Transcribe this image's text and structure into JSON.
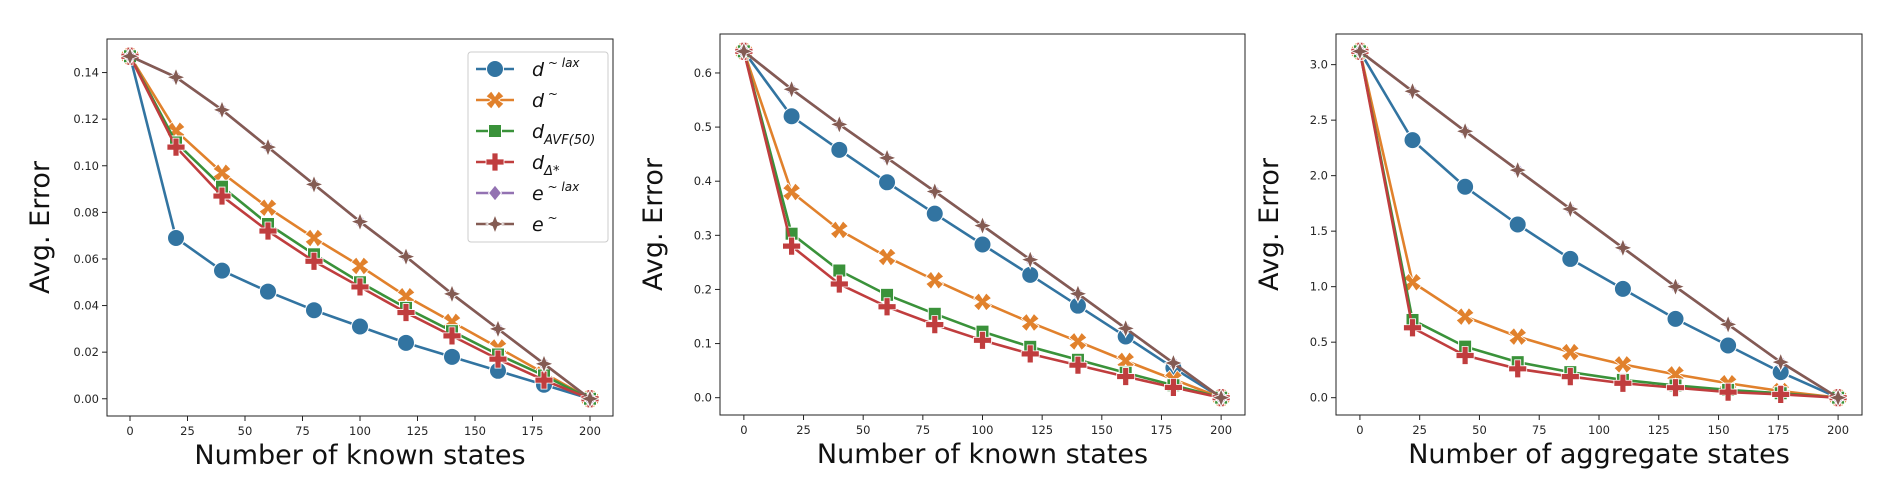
{
  "chart_data": [
    {
      "type": "line",
      "xlabel": "Number of known states",
      "ylabel": "Avg. Error",
      "xlim": [
        -10,
        210
      ],
      "ylim": [
        -0.0074,
        0.1544
      ],
      "xticks": [
        0,
        25,
        50,
        75,
        100,
        125,
        150,
        175,
        200
      ],
      "yticks": [
        0.0,
        0.02,
        0.04,
        0.06,
        0.08,
        0.1,
        0.12,
        0.14
      ],
      "ytick_decimals": 2,
      "legend": "top-right",
      "x": [
        0,
        20,
        40,
        60,
        80,
        100,
        120,
        140,
        160,
        180,
        200
      ],
      "series": [
        {
          "name": "d~lax",
          "label_main": "d",
          "label_sup": "~ lax",
          "label_sub": "",
          "color": "#3274a1",
          "marker": "circle",
          "values": [
            0.147,
            0.069,
            0.055,
            0.046,
            0.038,
            0.031,
            0.024,
            0.018,
            0.012,
            0.006,
            0.0
          ]
        },
        {
          "name": "d~",
          "label_main": "d",
          "label_sup": "~",
          "label_sub": "",
          "color": "#e1812c",
          "marker": "x",
          "values": [
            0.147,
            0.115,
            0.097,
            0.082,
            0.069,
            0.057,
            0.044,
            0.033,
            0.022,
            0.011,
            0.0
          ]
        },
        {
          "name": "d_AVF(50)",
          "label_main": "d",
          "label_sup": "",
          "label_sub": "AVF(50)",
          "color": "#3a923a",
          "marker": "square",
          "values": [
            0.147,
            0.11,
            0.091,
            0.075,
            0.062,
            0.05,
            0.039,
            0.029,
            0.019,
            0.01,
            0.0
          ]
        },
        {
          "name": "d_Δ*",
          "label_main": "d",
          "label_sup": "",
          "label_sub": "Δ*",
          "color": "#c03d3e",
          "marker": "plus",
          "values": [
            0.147,
            0.108,
            0.087,
            0.072,
            0.059,
            0.048,
            0.037,
            0.027,
            0.017,
            0.008,
            0.0
          ]
        },
        {
          "name": "e~lax",
          "label_main": "e",
          "label_sup": "~ lax",
          "label_sub": "",
          "color": "#9372b2",
          "marker": "diamond",
          "values": [
            0.147,
            0.138,
            0.124,
            0.108,
            0.092,
            0.076,
            0.061,
            0.045,
            0.03,
            0.015,
            0.0
          ]
        },
        {
          "name": "e~",
          "label_main": "e",
          "label_sup": "~",
          "label_sub": "",
          "color": "#845b53",
          "marker": "star",
          "values": [
            0.147,
            0.138,
            0.124,
            0.108,
            0.092,
            0.076,
            0.061,
            0.045,
            0.03,
            0.015,
            0.0
          ]
        }
      ]
    },
    {
      "type": "line",
      "xlabel": "Number of known states",
      "ylabel": "Avg. Error",
      "xlim": [
        -10,
        210
      ],
      "ylim": [
        -0.032,
        0.672
      ],
      "xticks": [
        0,
        25,
        50,
        75,
        100,
        125,
        150,
        175,
        200
      ],
      "yticks": [
        0.0,
        0.1,
        0.2,
        0.3,
        0.4,
        0.5,
        0.6
      ],
      "ytick_decimals": 1,
      "legend": "none",
      "x": [
        0,
        20,
        40,
        60,
        80,
        100,
        120,
        140,
        160,
        180,
        200
      ],
      "series": [
        {
          "name": "d~lax",
          "color": "#3274a1",
          "marker": "circle",
          "values": [
            0.64,
            0.52,
            0.458,
            0.398,
            0.34,
            0.283,
            0.227,
            0.17,
            0.113,
            0.055,
            0.0
          ]
        },
        {
          "name": "d~",
          "color": "#e1812c",
          "marker": "x",
          "values": [
            0.64,
            0.38,
            0.31,
            0.26,
            0.217,
            0.177,
            0.139,
            0.104,
            0.068,
            0.034,
            0.0
          ]
        },
        {
          "name": "d_AVF(50)",
          "color": "#3a923a",
          "marker": "square",
          "values": [
            0.64,
            0.303,
            0.235,
            0.19,
            0.155,
            0.122,
            0.094,
            0.07,
            0.046,
            0.023,
            0.0
          ]
        },
        {
          "name": "d_Δ*",
          "color": "#c03d3e",
          "marker": "plus",
          "values": [
            0.64,
            0.28,
            0.21,
            0.168,
            0.135,
            0.106,
            0.081,
            0.06,
            0.039,
            0.019,
            0.0
          ]
        },
        {
          "name": "e~lax",
          "color": "#9372b2",
          "marker": "diamond",
          "values": [
            0.64,
            0.57,
            0.505,
            0.443,
            0.381,
            0.318,
            0.255,
            0.192,
            0.128,
            0.064,
            0.0
          ]
        },
        {
          "name": "e~",
          "color": "#845b53",
          "marker": "star",
          "values": [
            0.64,
            0.57,
            0.505,
            0.443,
            0.381,
            0.318,
            0.255,
            0.192,
            0.128,
            0.064,
            0.0
          ]
        }
      ]
    },
    {
      "type": "line",
      "xlabel": "Number of aggregate states",
      "ylabel": "Avg. Error",
      "xlim": [
        -10,
        210
      ],
      "ylim": [
        -0.156,
        3.276
      ],
      "xticks": [
        0,
        25,
        50,
        75,
        100,
        125,
        150,
        175,
        200
      ],
      "yticks": [
        0.0,
        0.5,
        1.0,
        1.5,
        2.0,
        2.5,
        3.0
      ],
      "ytick_decimals": 1,
      "legend": "none",
      "x": [
        0,
        22,
        44,
        66,
        88,
        110,
        132,
        154,
        176,
        200
      ],
      "series": [
        {
          "name": "d~lax",
          "color": "#3274a1",
          "marker": "circle",
          "values": [
            3.12,
            2.32,
            1.9,
            1.56,
            1.25,
            0.98,
            0.71,
            0.47,
            0.23,
            0.0
          ]
        },
        {
          "name": "d~",
          "color": "#e1812c",
          "marker": "x",
          "values": [
            3.12,
            1.04,
            0.73,
            0.55,
            0.41,
            0.3,
            0.21,
            0.13,
            0.06,
            0.0
          ]
        },
        {
          "name": "d_AVF(50)",
          "color": "#3a923a",
          "marker": "square",
          "values": [
            3.12,
            0.7,
            0.46,
            0.32,
            0.23,
            0.16,
            0.11,
            0.07,
            0.04,
            0.0
          ]
        },
        {
          "name": "d_Δ*",
          "color": "#c03d3e",
          "marker": "plus",
          "values": [
            3.12,
            0.63,
            0.38,
            0.26,
            0.19,
            0.13,
            0.09,
            0.05,
            0.03,
            0.0
          ]
        },
        {
          "name": "e~lax",
          "color": "#9372b2",
          "marker": "diamond",
          "values": [
            3.12,
            2.76,
            2.4,
            2.05,
            1.7,
            1.35,
            1.0,
            0.66,
            0.32,
            0.0
          ]
        },
        {
          "name": "e~",
          "color": "#845b53",
          "marker": "star",
          "values": [
            3.12,
            2.76,
            2.4,
            2.05,
            1.7,
            1.35,
            1.0,
            0.66,
            0.32,
            0.0
          ]
        }
      ]
    }
  ]
}
